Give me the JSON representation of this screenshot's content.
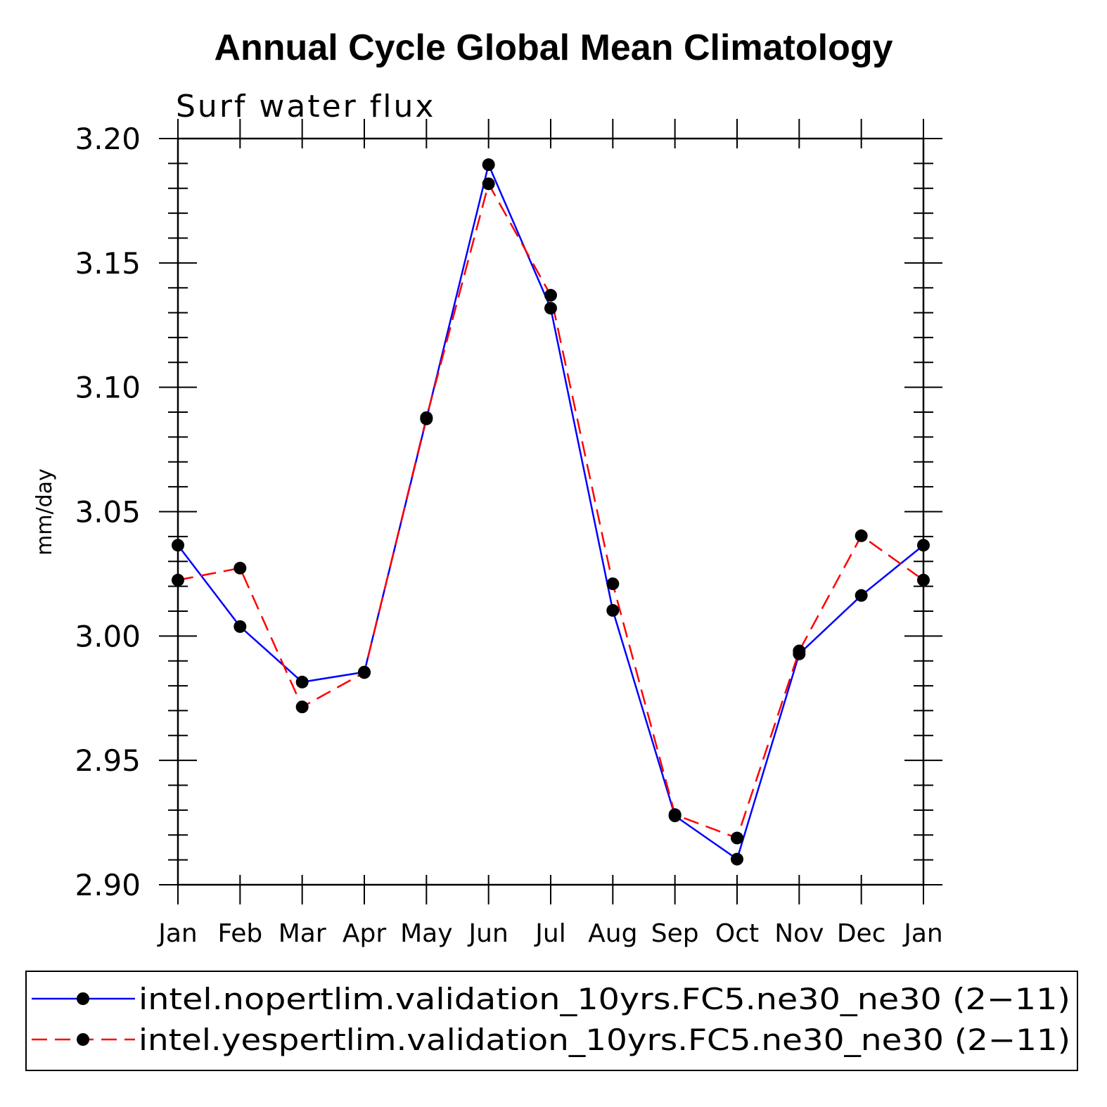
{
  "chart_data": {
    "type": "line",
    "title": "Annual Cycle Global Mean Climatology",
    "subtitle": "Surf water flux",
    "xlabel": "",
    "ylabel": "mm/day",
    "categories": [
      "Jan",
      "Feb",
      "Mar",
      "Apr",
      "May",
      "Jun",
      "Jul",
      "Aug",
      "Sep",
      "Oct",
      "Nov",
      "Dec",
      "Jan"
    ],
    "ylim": [
      2.9,
      3.2
    ],
    "yticks": [
      "2.90",
      "2.95",
      "3.00",
      "3.05",
      "3.10",
      "3.15",
      "3.20"
    ],
    "legend_position": "bottom",
    "series": [
      {
        "name": "intel.nopertlim.validation_10yrs.FC5.ne30_ne30 (2−11)",
        "color": "#0000ff",
        "dash": "solid",
        "values": [
          3.0365,
          3.0038,
          2.9815,
          2.9855,
          3.0873,
          3.1895,
          3.1318,
          3.0103,
          2.9277,
          2.9103,
          2.9928,
          3.0163,
          3.0365
        ]
      },
      {
        "name": "intel.yespertlim.validation_10yrs.FC5.ne30_ne30 (2−11)",
        "color": "#ff0000",
        "dash": "dashed",
        "values": [
          3.0225,
          3.0273,
          2.9715,
          2.9853,
          3.0878,
          3.1818,
          3.137,
          3.021,
          2.9282,
          2.9188,
          2.994,
          3.0403,
          3.0225
        ]
      }
    ]
  }
}
